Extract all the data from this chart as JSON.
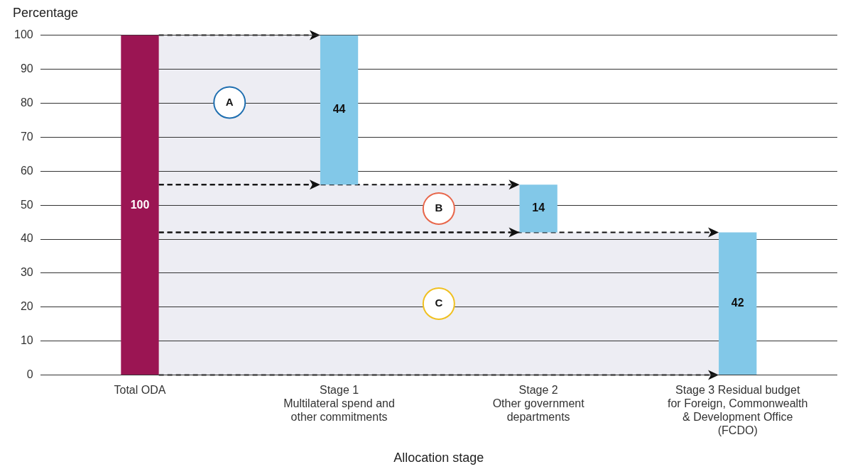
{
  "chart_data": {
    "type": "bar",
    "ylabel": "Percentage",
    "xlabel": "Allocation stage",
    "categories": [
      "Total ODA",
      "Stage 1\nMultilateral spend and\nother commitments",
      "Stage 2\nOther government\ndepartments",
      "Stage 3 Residual budget\nfor Foreign, Commonwealth\n& Development Office\n(FCDO)"
    ],
    "values": [
      100,
      44,
      14,
      42
    ],
    "base": [
      0,
      56,
      42,
      0
    ],
    "colors": [
      "#9b1553",
      "#82c8e8",
      "#82c8e8",
      "#82c8e8"
    ],
    "data_labels": true,
    "ylim": [
      0,
      100
    ],
    "yticks": [
      0,
      10,
      20,
      30,
      40,
      50,
      60,
      70,
      80,
      90,
      100
    ],
    "grid": "y",
    "legend": false,
    "annotations": [
      "A",
      "B",
      "C"
    ]
  }
}
